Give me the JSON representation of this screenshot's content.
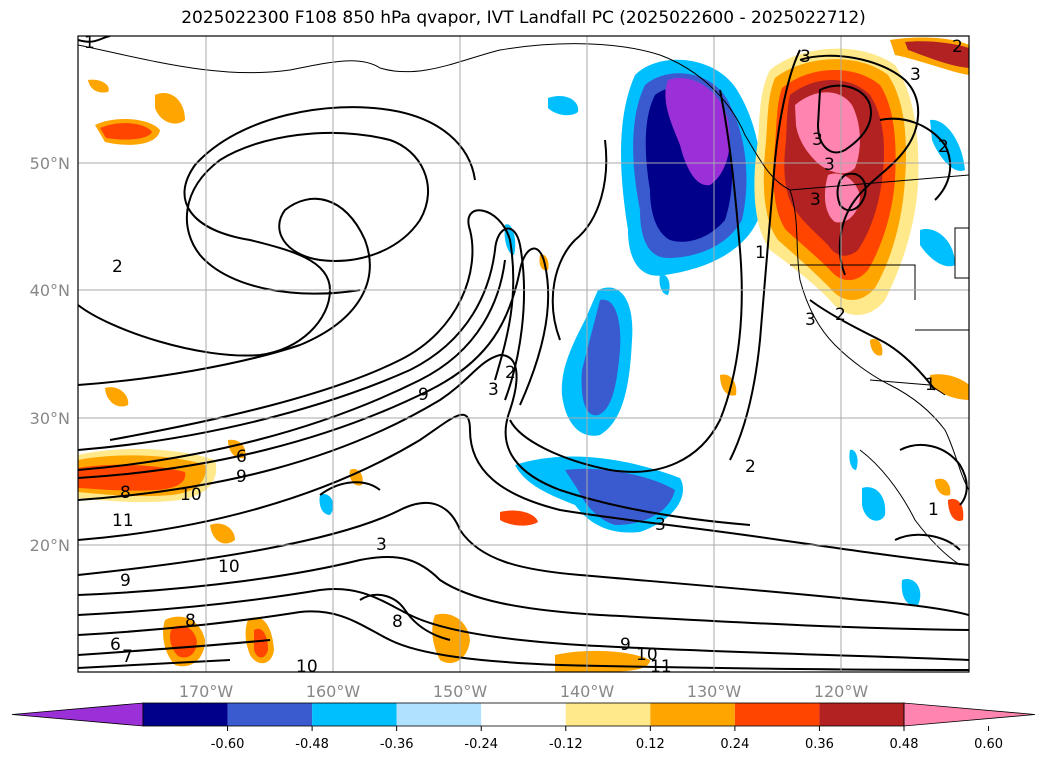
{
  "title": "2025022300 F108 850 hPa qvapor, IVT Landfall PC (2025022600 - 2025022712)",
  "lat_labels": [
    "50°N",
    "40°N",
    "30°N",
    "20°N"
  ],
  "lon_labels": [
    "170°W",
    "160°W",
    "150°W",
    "140°W",
    "130°W",
    "120°W"
  ],
  "colorbar": {
    "levels": [
      "-0.60",
      "-0.48",
      "-0.36",
      "-0.24",
      "-0.12",
      "0.12",
      "0.24",
      "0.36",
      "0.48",
      "0.60"
    ],
    "colors": [
      "#9b30d9",
      "#00008b",
      "#3a5bd0",
      "#00bfff",
      "#b0e2ff",
      "#ffffff",
      "#ffe98a",
      "#ffa500",
      "#ff4500",
      "#b22222",
      "#ff85b0"
    ]
  },
  "contour_labels": [
    "2",
    "3",
    "9",
    "6",
    "8",
    "10",
    "11",
    "7",
    "1"
  ]
}
